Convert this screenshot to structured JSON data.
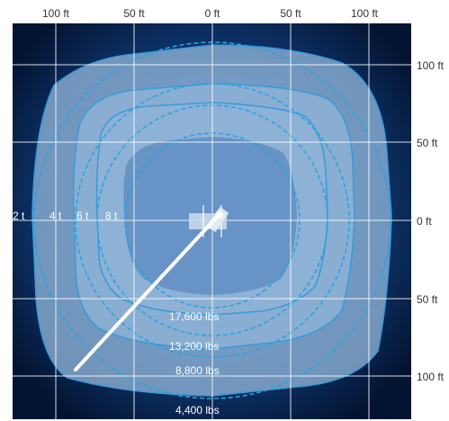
{
  "top_axis": [
    "100 ft",
    "50 ft",
    "0 ft",
    "50 ft",
    "100 ft"
  ],
  "right_axis": [
    "100 ft",
    "50 ft",
    "0 ft",
    "50 ft",
    "100 ft"
  ],
  "ton_labels": [
    "2 t",
    "4 t",
    "6 t",
    "8 t"
  ],
  "load_labels": [
    "17,600 lbs",
    "13,200 lbs",
    "8,800 lbs",
    "4,400 lbs"
  ],
  "colors": {
    "background_outer": "#041a3c",
    "background_center": "#2a6fc0",
    "zone_fill": "#8fb3d6",
    "zone_stroke": "#3a9ad9",
    "circle_stroke": "#29a3e0",
    "grid": "#ffffff",
    "boom": "#ffffff"
  }
}
